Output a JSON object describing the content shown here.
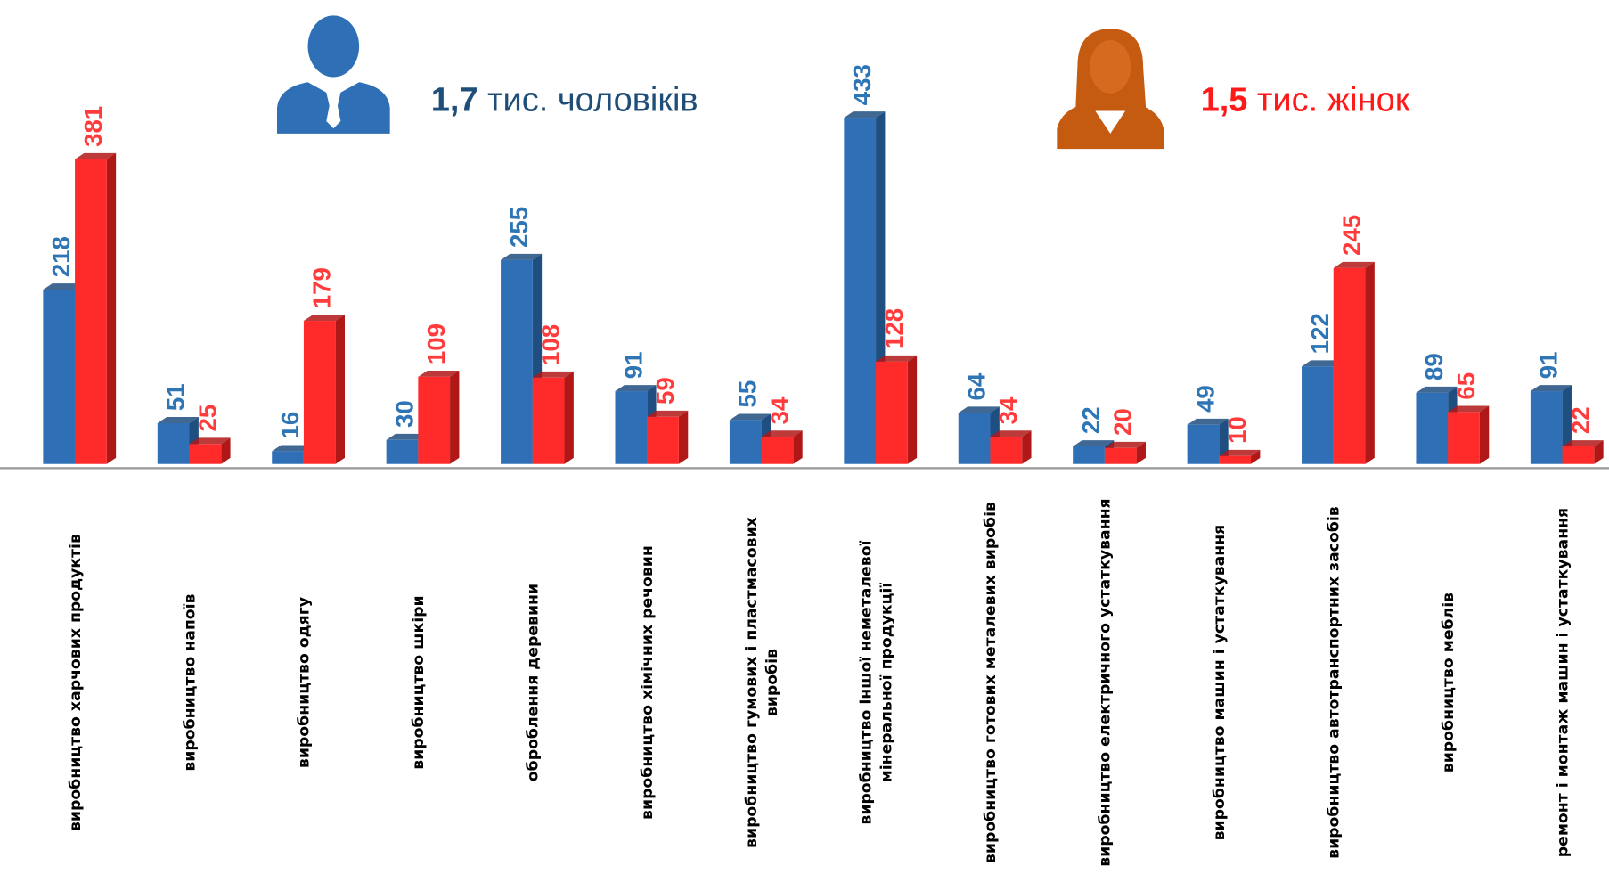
{
  "chart_data": {
    "type": "bar",
    "annotations": [
      {
        "value": "1,7",
        "text": "тис. чоловіків",
        "color": "#1f4e79"
      },
      {
        "value": "1,5",
        "text": "тис. жінок",
        "color": "#ff1a1a"
      }
    ],
    "categories": [
      "виробництво харчових продуктів",
      "виробництво напоїв",
      "виробництво одягу",
      "виробництво шкіри",
      "оброблення деревини",
      "виробництво хімічних речовин",
      "виробництво гумових і пластмасових виробів",
      "виробництво іншої неметалевої мінеральної продукції",
      "виробництво готових металевих виробів",
      "виробництво електричного устаткування",
      "виробництво машин і устаткування",
      "виробництво автотранспортних засобів",
      "виробництво меблів",
      "ремонт і монтаж машин і устаткування"
    ],
    "series": [
      {
        "name": "чоловіки",
        "color": "#2e6fb5",
        "side": "#1f4e80",
        "label_color": "#2e75b6",
        "values": [
          218,
          51,
          16,
          30,
          255,
          91,
          55,
          433,
          64,
          22,
          49,
          122,
          89,
          91
        ]
      },
      {
        "name": "жінки",
        "color": "#ff2a2a",
        "side": "#b01818",
        "label_color": "#ff3b3b",
        "values": [
          381,
          25,
          179,
          109,
          108,
          59,
          34,
          128,
          34,
          20,
          10,
          245,
          65,
          22
        ]
      }
    ],
    "ylim": [
      0,
      580
    ]
  }
}
